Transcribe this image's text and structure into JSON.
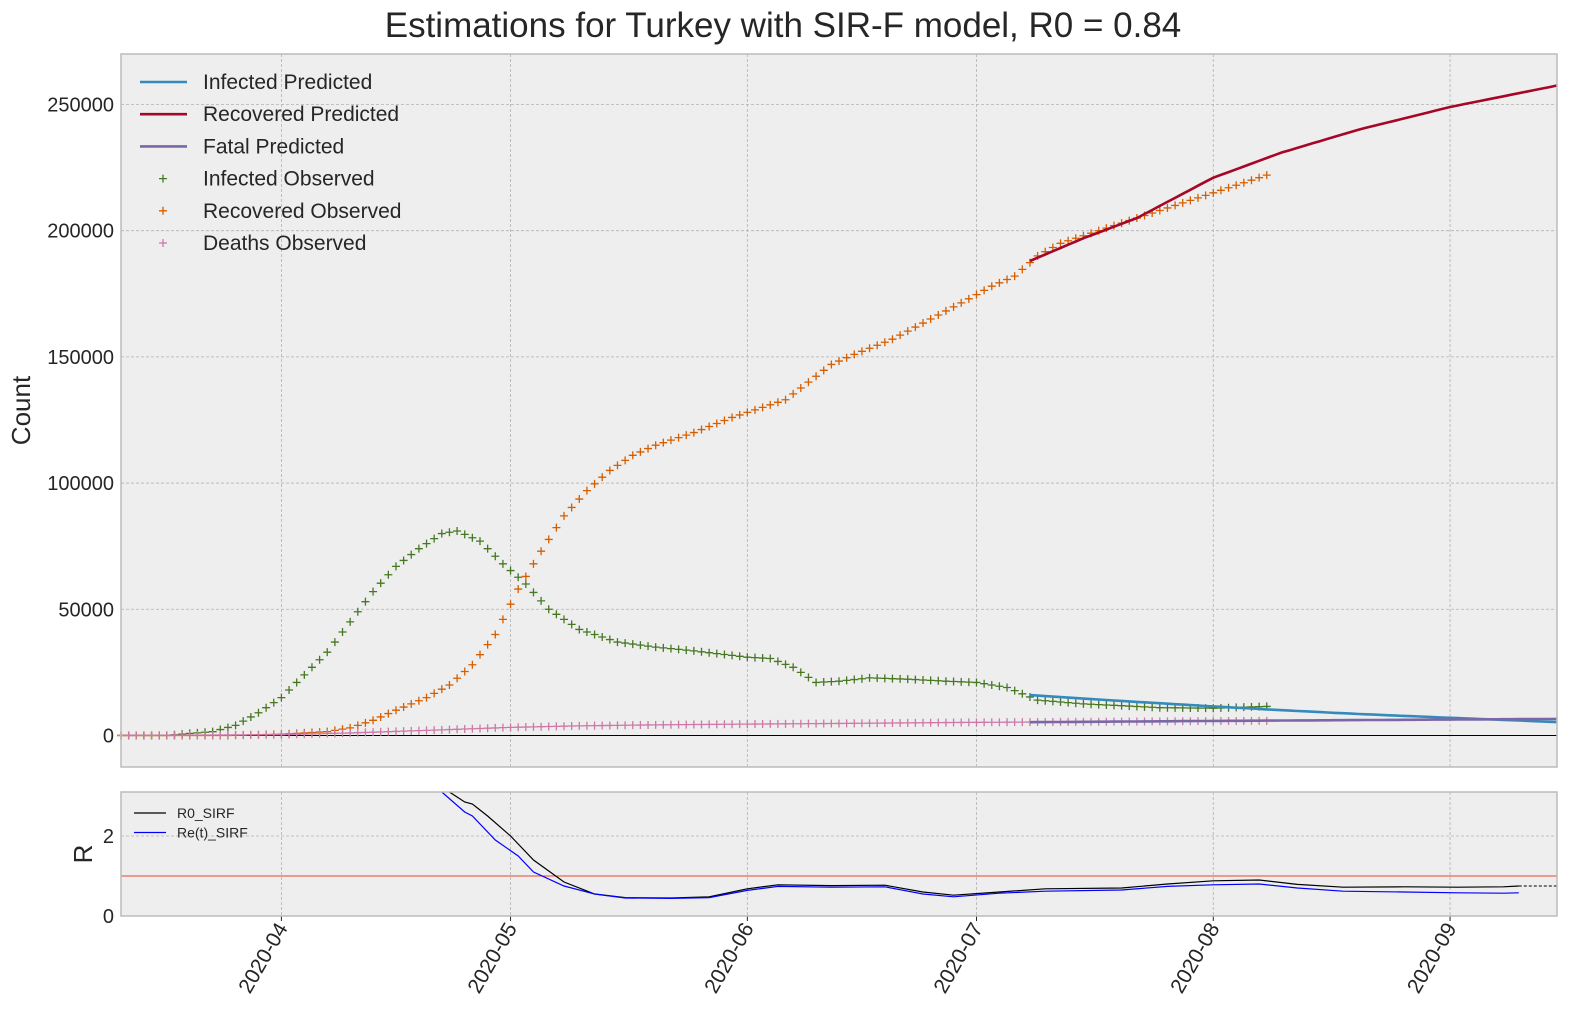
{
  "figure": {
    "title": "Estimations for Turkey with SIR-F model, R0 = 0.84"
  },
  "chart_data": [
    {
      "type": "line",
      "title": "Estimations for Turkey with SIR-F model, R0 = 0.84",
      "xlabel": "",
      "ylabel": "Count",
      "x_axis": "date",
      "xlim": [
        "2020-03-11",
        "2020-09-15"
      ],
      "ylim": [
        -12500,
        270000
      ],
      "x_ticks": [
        "2020-04-01",
        "2020-05-01",
        "2020-06-01",
        "2020-07-01",
        "2020-08-01",
        "2020-09-01"
      ],
      "x_tick_labels": [
        "2020-04",
        "2020-05",
        "2020-06",
        "2020-07",
        "2020-08",
        "2020-09"
      ],
      "y_ticks": [
        0,
        50000,
        100000,
        150000,
        200000,
        250000
      ],
      "y_tick_labels": [
        "0",
        "50000",
        "100000",
        "150000",
        "200000",
        "250000"
      ],
      "grid": true,
      "legend_position": "top-left",
      "series": [
        {
          "name": "Infected Predicted",
          "kind": "line",
          "color": "#348ABD",
          "points": [
            [
              "2020-07-08",
              16000
            ],
            [
              "2020-07-15",
              14600
            ],
            [
              "2020-07-22",
              13300
            ],
            [
              "2020-08-01",
              11500
            ],
            [
              "2020-08-10",
              10000
            ],
            [
              "2020-08-20",
              8500
            ],
            [
              "2020-09-01",
              7000
            ],
            [
              "2020-09-15",
              5300
            ]
          ]
        },
        {
          "name": "Recovered Predicted",
          "kind": "line",
          "color": "#A60628",
          "points": [
            [
              "2020-07-08",
              188000
            ],
            [
              "2020-07-15",
              197000
            ],
            [
              "2020-07-22",
              205000
            ],
            [
              "2020-08-01",
              221000
            ],
            [
              "2020-08-10",
              231000
            ],
            [
              "2020-08-20",
              240000
            ],
            [
              "2020-09-01",
              249000
            ],
            [
              "2020-09-15",
              257500
            ]
          ]
        },
        {
          "name": "Fatal Predicted",
          "kind": "line",
          "color": "#7A68A6",
          "points": [
            [
              "2020-07-08",
              5250
            ],
            [
              "2020-08-01",
              5750
            ],
            [
              "2020-09-01",
              6300
            ],
            [
              "2020-09-15",
              6550
            ]
          ]
        },
        {
          "name": "Infected Observed",
          "kind": "marker",
          "color": "#467821",
          "points": [
            [
              "2020-03-11",
              0
            ],
            [
              "2020-03-17",
              0
            ],
            [
              "2020-03-20",
              800
            ],
            [
              "2020-03-23",
              1500
            ],
            [
              "2020-03-26",
              4000
            ],
            [
              "2020-03-29",
              9000
            ],
            [
              "2020-04-01",
              15000
            ],
            [
              "2020-04-04",
              24000
            ],
            [
              "2020-04-07",
              33000
            ],
            [
              "2020-04-10",
              45000
            ],
            [
              "2020-04-13",
              57000
            ],
            [
              "2020-04-16",
              67000
            ],
            [
              "2020-04-19",
              74000
            ],
            [
              "2020-04-22",
              80000
            ],
            [
              "2020-04-24",
              81000
            ],
            [
              "2020-04-27",
              77000
            ],
            [
              "2020-04-30",
              68000
            ],
            [
              "2020-05-03",
              60000
            ],
            [
              "2020-05-06",
              50000
            ],
            [
              "2020-05-10",
              42000
            ],
            [
              "2020-05-15",
              37000
            ],
            [
              "2020-05-20",
              35000
            ],
            [
              "2020-05-25",
              33500
            ],
            [
              "2020-06-01",
              31000
            ],
            [
              "2020-06-04",
              30500
            ],
            [
              "2020-06-07",
              27000
            ],
            [
              "2020-06-10",
              21000
            ],
            [
              "2020-06-13",
              21500
            ],
            [
              "2020-06-17",
              22800
            ],
            [
              "2020-06-22",
              22300
            ],
            [
              "2020-06-27",
              21500
            ],
            [
              "2020-07-01",
              21000
            ],
            [
              "2020-07-05",
              19000
            ],
            [
              "2020-07-09",
              14000
            ],
            [
              "2020-07-15",
              12500
            ],
            [
              "2020-07-20",
              11800
            ],
            [
              "2020-07-25",
              11000
            ],
            [
              "2020-08-01",
              10800
            ],
            [
              "2020-08-08",
              11500
            ]
          ]
        },
        {
          "name": "Recovered Observed",
          "kind": "marker",
          "color": "#D55E00",
          "points": [
            [
              "2020-03-11",
              0
            ],
            [
              "2020-03-25",
              0
            ],
            [
              "2020-04-01",
              500
            ],
            [
              "2020-04-07",
              1500
            ],
            [
              "2020-04-10",
              3000
            ],
            [
              "2020-04-13",
              6000
            ],
            [
              "2020-04-16",
              10000
            ],
            [
              "2020-04-20",
              15000
            ],
            [
              "2020-04-23",
              20000
            ],
            [
              "2020-04-26",
              28000
            ],
            [
              "2020-04-29",
              40000
            ],
            [
              "2020-05-02",
              58000
            ],
            [
              "2020-05-05",
              73000
            ],
            [
              "2020-05-08",
              87000
            ],
            [
              "2020-05-11",
              97000
            ],
            [
              "2020-05-14",
              105000
            ],
            [
              "2020-05-17",
              111000
            ],
            [
              "2020-05-20",
              115000
            ],
            [
              "2020-05-25",
              120000
            ],
            [
              "2020-05-30",
              126000
            ],
            [
              "2020-06-03",
              130000
            ],
            [
              "2020-06-06",
              133000
            ],
            [
              "2020-06-09",
              140000
            ],
            [
              "2020-06-12",
              147000
            ],
            [
              "2020-06-15",
              151000
            ],
            [
              "2020-06-20",
              157000
            ],
            [
              "2020-06-25",
              165000
            ],
            [
              "2020-06-30",
              173000
            ],
            [
              "2020-07-03",
              178000
            ],
            [
              "2020-07-06",
              182000
            ],
            [
              "2020-07-09",
              190000
            ],
            [
              "2020-07-12",
              195000
            ],
            [
              "2020-07-17",
              200000
            ],
            [
              "2020-07-22",
              205000
            ],
            [
              "2020-07-27",
              210000
            ],
            [
              "2020-08-01",
              215000
            ],
            [
              "2020-08-08",
              222000
            ]
          ]
        },
        {
          "name": "Deaths Observed",
          "kind": "marker",
          "color": "#CC79A7",
          "points": [
            [
              "2020-03-11",
              0
            ],
            [
              "2020-04-01",
              300
            ],
            [
              "2020-04-10",
              1000
            ],
            [
              "2020-04-20",
              2000
            ],
            [
              "2020-05-01",
              3200
            ],
            [
              "2020-05-10",
              3800
            ],
            [
              "2020-05-20",
              4200
            ],
            [
              "2020-06-01",
              4500
            ],
            [
              "2020-06-15",
              4800
            ],
            [
              "2020-07-01",
              5200
            ],
            [
              "2020-07-15",
              5400
            ],
            [
              "2020-08-01",
              5700
            ],
            [
              "2020-08-08",
              5800
            ]
          ]
        }
      ]
    },
    {
      "type": "line",
      "title": "",
      "xlabel": "",
      "ylabel": "R",
      "x_axis": "date",
      "xlim": [
        "2020-03-11",
        "2020-09-15"
      ],
      "ylim": [
        0,
        3.1
      ],
      "y_ticks": [
        0,
        2
      ],
      "y_tick_labels": [
        "0",
        "2"
      ],
      "grid": true,
      "legend_position": "top-left",
      "reference_line": {
        "y": 1,
        "color": "#E24A33"
      },
      "series": [
        {
          "name": "R0_SIRF",
          "color": "#000000",
          "points": [
            [
              "2020-04-23",
              3.1
            ],
            [
              "2020-04-25",
              2.85
            ],
            [
              "2020-04-26",
              2.8
            ],
            [
              "2020-04-28",
              2.5
            ],
            [
              "2020-05-01",
              2.0
            ],
            [
              "2020-05-04",
              1.4
            ],
            [
              "2020-05-08",
              0.85
            ],
            [
              "2020-05-12",
              0.55
            ],
            [
              "2020-05-16",
              0.46
            ],
            [
              "2020-05-22",
              0.45
            ],
            [
              "2020-05-27",
              0.48
            ],
            [
              "2020-06-01",
              0.68
            ],
            [
              "2020-06-05",
              0.78
            ],
            [
              "2020-06-12",
              0.76
            ],
            [
              "2020-06-19",
              0.77
            ],
            [
              "2020-06-24",
              0.6
            ],
            [
              "2020-06-28",
              0.52
            ],
            [
              "2020-07-04",
              0.6
            ],
            [
              "2020-07-10",
              0.68
            ],
            [
              "2020-07-20",
              0.7
            ],
            [
              "2020-07-26",
              0.8
            ],
            [
              "2020-08-01",
              0.88
            ],
            [
              "2020-08-07",
              0.9
            ],
            [
              "2020-08-12",
              0.79
            ],
            [
              "2020-08-18",
              0.72
            ],
            [
              "2020-08-26",
              0.73
            ],
            [
              "2020-09-02",
              0.72
            ],
            [
              "2020-09-08",
              0.73
            ],
            [
              "2020-09-10",
              0.75
            ]
          ],
          "extension": [
            [
              "2020-09-10",
              0.75
            ],
            [
              "2020-09-15",
              0.75
            ]
          ]
        },
        {
          "name": "Re(t)_SIRF",
          "color": "#0000FF",
          "points": [
            [
              "2020-04-22",
              3.1
            ],
            [
              "2020-04-25",
              2.6
            ],
            [
              "2020-04-26",
              2.5
            ],
            [
              "2020-04-29",
              1.9
            ],
            [
              "2020-05-02",
              1.5
            ],
            [
              "2020-05-04",
              1.1
            ],
            [
              "2020-05-08",
              0.75
            ],
            [
              "2020-05-12",
              0.55
            ],
            [
              "2020-05-16",
              0.45
            ],
            [
              "2020-05-22",
              0.44
            ],
            [
              "2020-05-27",
              0.46
            ],
            [
              "2020-06-01",
              0.64
            ],
            [
              "2020-06-05",
              0.74
            ],
            [
              "2020-06-12",
              0.72
            ],
            [
              "2020-06-19",
              0.73
            ],
            [
              "2020-06-24",
              0.55
            ],
            [
              "2020-06-28",
              0.48
            ],
            [
              "2020-07-04",
              0.57
            ],
            [
              "2020-07-10",
              0.62
            ],
            [
              "2020-07-20",
              0.65
            ],
            [
              "2020-07-26",
              0.74
            ],
            [
              "2020-08-01",
              0.78
            ],
            [
              "2020-08-07",
              0.8
            ],
            [
              "2020-08-12",
              0.7
            ],
            [
              "2020-08-18",
              0.62
            ],
            [
              "2020-08-26",
              0.6
            ],
            [
              "2020-09-02",
              0.58
            ],
            [
              "2020-09-08",
              0.57
            ],
            [
              "2020-09-10",
              0.58
            ]
          ]
        }
      ]
    }
  ]
}
